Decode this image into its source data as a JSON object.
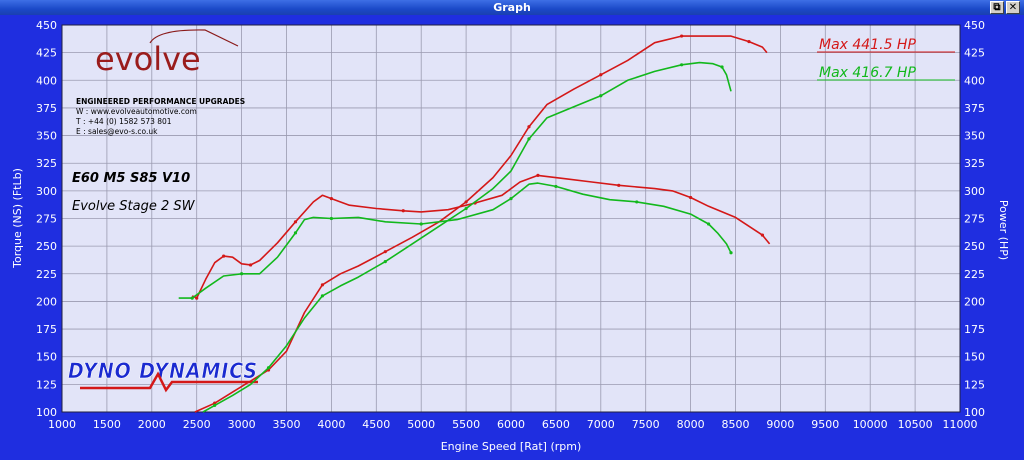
{
  "window": {
    "title": "Graph",
    "restore_glyph": "⧉",
    "close_glyph": "✕"
  },
  "logos": {
    "evolve": {
      "brand": "evolve",
      "tagline": "ENGINEERED PERFORMANCE UPGRADES"
    },
    "dyno": {
      "brand": "DYNO DYNAMICS"
    }
  },
  "contact": {
    "web": "W : www.evolveautomotive.com",
    "tel": "T : +44 (0) 1582 573 801",
    "email": "E : sales@evo-s.co.uk"
  },
  "car": {
    "model": "E60 M5 S85 V10",
    "stage": "Evolve Stage 2 SW"
  },
  "colors": {
    "background": "#1f2ee0",
    "plot_bg": "#e2e4f8",
    "grid": "#9a9ab0",
    "red": "#d41818",
    "green": "#12b81c"
  },
  "chart_data": {
    "type": "line",
    "xlabel": "Engine Speed [Rat] (rpm)",
    "ylabel": "Torque (NS) (FtLb)",
    "y2label": "Power (HP)",
    "xlim": [
      1000,
      11000
    ],
    "ylim": [
      100,
      450
    ],
    "y2lim": [
      100,
      450
    ],
    "xticks": [
      1000,
      1500,
      2000,
      2500,
      3000,
      3500,
      4000,
      4500,
      5000,
      5500,
      6000,
      6500,
      7000,
      7500,
      8000,
      8500,
      9000,
      9500,
      10000,
      10500,
      11000
    ],
    "yticks": [
      100,
      125,
      150,
      175,
      200,
      225,
      250,
      275,
      300,
      325,
      350,
      375,
      400,
      425,
      450
    ],
    "legend": [
      {
        "text": "Max 441.5 HP",
        "color": "#d41818"
      },
      {
        "text": "Max 416.7 HP",
        "color": "#12b81c"
      }
    ],
    "series": [
      {
        "color": "#d41818",
        "axis": "power",
        "x": [
          2480,
          2700,
          2900,
          3100,
          3300,
          3500,
          3700,
          3900,
          4100,
          4300,
          4600,
          4900,
          5200,
          5500,
          5800,
          6000,
          6200,
          6400,
          6700,
          7000,
          7300,
          7600,
          7900,
          8200,
          8450,
          8650,
          8800,
          8850
        ],
        "y": [
          100,
          108,
          118,
          128,
          138,
          155,
          190,
          215,
          225,
          232,
          245,
          258,
          272,
          290,
          312,
          332,
          358,
          378,
          392,
          405,
          418,
          434,
          440,
          440,
          440,
          435,
          430,
          425
        ]
      },
      {
        "color": "#d41818",
        "axis": "torque",
        "x": [
          2450,
          2500,
          2600,
          2700,
          2800,
          2900,
          3000,
          3100,
          3200,
          3400,
          3600,
          3800,
          3900,
          4000,
          4200,
          4500,
          4800,
          5000,
          5300,
          5600,
          5900,
          6100,
          6300,
          6600,
          6900,
          7200,
          7600,
          7800,
          8000,
          8200,
          8500,
          8800,
          8880
        ],
        "y": [
          205,
          203,
          220,
          235,
          241,
          240,
          234,
          233,
          237,
          253,
          272,
          290,
          296,
          293,
          287,
          284,
          282,
          281,
          283,
          289,
          296,
          308,
          314,
          311,
          308,
          305,
          302,
          300,
          294,
          286,
          276,
          260,
          252
        ]
      },
      {
        "color": "#12b81c",
        "axis": "power",
        "x": [
          2570,
          2700,
          2900,
          3100,
          3300,
          3500,
          3700,
          3900,
          4100,
          4300,
          4600,
          4900,
          5200,
          5500,
          5800,
          6000,
          6200,
          6400,
          6700,
          7000,
          7300,
          7600,
          7900,
          8100,
          8250,
          8350,
          8400,
          8450
        ],
        "y": [
          100,
          106,
          115,
          125,
          140,
          160,
          185,
          205,
          214,
          222,
          236,
          252,
          268,
          284,
          302,
          318,
          347,
          366,
          376,
          386,
          400,
          408,
          414,
          416,
          415,
          412,
          405,
          390
        ]
      },
      {
        "color": "#12b81c",
        "axis": "torque",
        "x": [
          2300,
          2450,
          2600,
          2800,
          3000,
          3200,
          3400,
          3600,
          3700,
          3800,
          4000,
          4300,
          4600,
          5000,
          5400,
          5800,
          6000,
          6200,
          6300,
          6500,
          6800,
          7100,
          7400,
          7700,
          8000,
          8200,
          8300,
          8400,
          8450
        ],
        "y": [
          203,
          203,
          212,
          223,
          225,
          225,
          240,
          262,
          274,
          276,
          275,
          276,
          272,
          270,
          274,
          283,
          293,
          306,
          307,
          304,
          297,
          292,
          290,
          286,
          279,
          270,
          262,
          252,
          244
        ]
      }
    ]
  }
}
